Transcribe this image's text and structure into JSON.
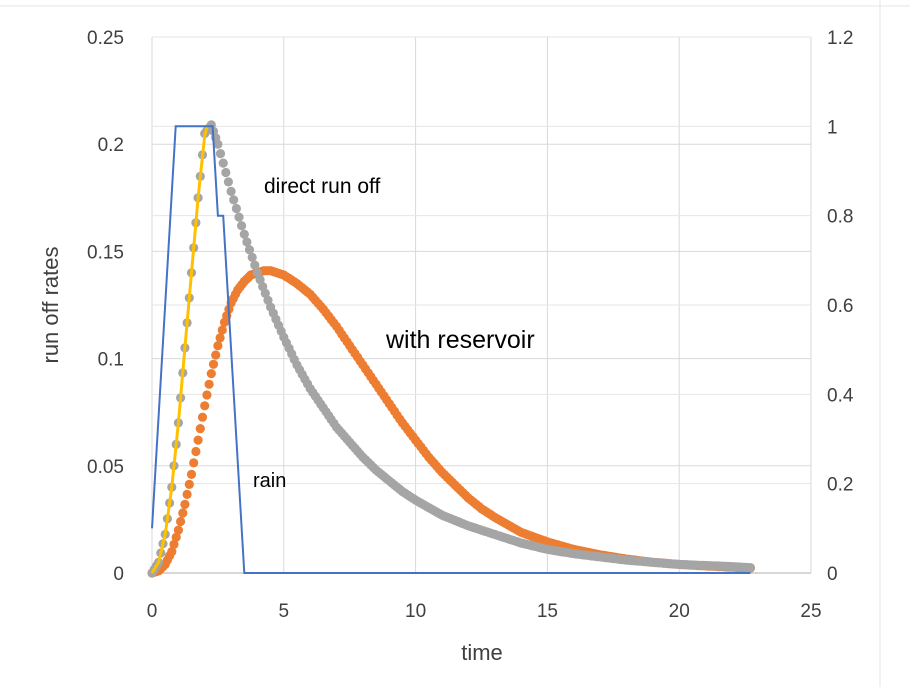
{
  "chart_data": {
    "type": "scatter",
    "title": "",
    "xlabel": "time",
    "ylabel": "run off rates",
    "y2label": "",
    "xlim": [
      0,
      25
    ],
    "ylim": [
      0,
      0.25
    ],
    "y2lim": [
      0,
      1.2
    ],
    "grid": true,
    "legend": "none",
    "x_ticks": [
      "0",
      "5",
      "10",
      "15",
      "20",
      "25"
    ],
    "y_ticks": [
      "0",
      "0.05",
      "0.1",
      "0.15",
      "0.2",
      "0.25"
    ],
    "y2_ticks": [
      "0",
      "0.2",
      "0.4",
      "0.6",
      "0.8",
      "1",
      "1.2"
    ],
    "annotations": {
      "direct": "direct run off",
      "reservoir": "with reservoir",
      "rain": "rain"
    },
    "series": [
      {
        "key": "rain",
        "axis": "right",
        "style": "line",
        "color": "#4472C4",
        "x": [
          0,
          0.9,
          2.3,
          2.5,
          2.7,
          3.5,
          22.7
        ],
        "y": [
          0.1,
          1.0,
          1.0,
          0.8,
          0.8,
          0,
          0
        ]
      },
      {
        "key": "direct-rising",
        "axis": "left",
        "style": "line",
        "color": "#FFC000",
        "x": [
          0,
          0.25,
          0.5,
          0.75,
          1.0,
          1.25,
          1.5,
          1.75,
          2.0,
          2.1
        ],
        "y": [
          0,
          0.005,
          0.018,
          0.04,
          0.07,
          0.105,
          0.14,
          0.175,
          0.204,
          0.209
        ]
      },
      {
        "key": "direct-run-off",
        "axis": "left",
        "style": "dots",
        "color": "#A5A5A5",
        "x": [
          0,
          0.25,
          0.5,
          0.75,
          1.0,
          1.25,
          1.5,
          1.75,
          2.0,
          2.25,
          2.5,
          3,
          3.5,
          4,
          4.5,
          5,
          5.5,
          6,
          6.5,
          7,
          7.5,
          8,
          8.5,
          9,
          9.5,
          10,
          11,
          12,
          13,
          14,
          15,
          16,
          17,
          18,
          19,
          20,
          21,
          22,
          22.7
        ],
        "y": [
          0,
          0.005,
          0.018,
          0.04,
          0.07,
          0.105,
          0.14,
          0.175,
          0.205,
          0.209,
          0.2,
          0.178,
          0.158,
          0.14,
          0.124,
          0.11,
          0.097,
          0.086,
          0.077,
          0.068,
          0.061,
          0.054,
          0.048,
          0.043,
          0.038,
          0.034,
          0.027,
          0.022,
          0.018,
          0.014,
          0.011,
          0.009,
          0.0075,
          0.006,
          0.005,
          0.004,
          0.0035,
          0.003,
          0.0025
        ]
      },
      {
        "key": "with-reservoir",
        "axis": "left",
        "style": "dots",
        "color": "#ED7D31",
        "x": [
          0,
          0.25,
          0.5,
          0.75,
          1.0,
          1.25,
          1.5,
          1.75,
          2.0,
          2.25,
          2.5,
          2.75,
          3,
          3.25,
          3.5,
          3.75,
          4,
          4.25,
          4.5,
          4.75,
          5,
          5.5,
          6,
          6.5,
          7,
          7.5,
          8,
          8.5,
          9,
          9.5,
          10,
          10.5,
          11,
          11.5,
          12,
          12.5,
          13,
          14,
          15,
          16,
          17,
          18,
          19,
          20,
          21,
          22,
          22.7
        ],
        "y": [
          0,
          0.001,
          0.004,
          0.01,
          0.02,
          0.032,
          0.046,
          0.062,
          0.078,
          0.093,
          0.106,
          0.117,
          0.126,
          0.132,
          0.136,
          0.139,
          0.14,
          0.141,
          0.141,
          0.14,
          0.139,
          0.135,
          0.13,
          0.123,
          0.115,
          0.106,
          0.097,
          0.088,
          0.079,
          0.07,
          0.062,
          0.054,
          0.047,
          0.041,
          0.035,
          0.03,
          0.026,
          0.019,
          0.0145,
          0.011,
          0.0085,
          0.0065,
          0.005,
          0.004,
          0.0033,
          0.0027,
          0.0023
        ]
      }
    ]
  }
}
